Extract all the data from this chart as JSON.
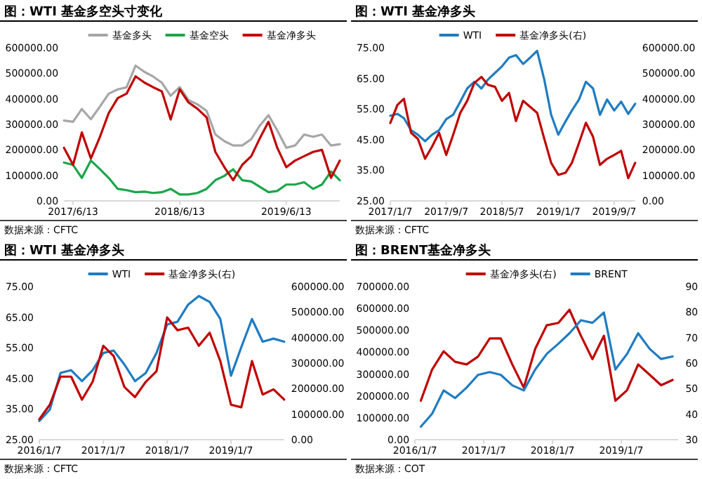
{
  "chart_data": [
    {
      "type": "line",
      "title": "图：WTI 基金多空头寸变化",
      "annotations": [
        "数据来源：CFTC"
      ],
      "legend": "top",
      "x": [
        "2017-05-13",
        "2017-06-13",
        "2017-07-13",
        "2017-08-13",
        "2017-09-13",
        "2017-10-13",
        "2017-11-13",
        "2017-12-13",
        "2018-01-13",
        "2018-02-13",
        "2018-03-13",
        "2018-04-13",
        "2018-05-13",
        "2018-06-13",
        "2018-07-13",
        "2018-08-13",
        "2018-09-13",
        "2018-10-13",
        "2018-11-13",
        "2018-12-13",
        "2019-01-13",
        "2019-02-13",
        "2019-03-13",
        "2019-04-13",
        "2019-05-13",
        "2019-06-13",
        "2019-07-13",
        "2019-08-13",
        "2019-09-13",
        "2019-10-13",
        "2019-11-13",
        "2019-12-13"
      ],
      "xlim": [
        "2017-05-13",
        "2019-12-13"
      ],
      "xticks": [
        {
          "value": "2017-06-13",
          "label": "2017/6/13"
        },
        {
          "value": "2018-06-13",
          "label": "2018/6/13"
        },
        {
          "value": "2019-06-13",
          "label": "2019/6/13"
        }
      ],
      "ylim": [
        0,
        600000
      ],
      "yticks": [
        {
          "value": 0,
          "label": "0.00"
        },
        {
          "value": 100000,
          "label": "100000.00"
        },
        {
          "value": 200000,
          "label": "200000.00"
        },
        {
          "value": 300000,
          "label": "300000.00"
        },
        {
          "value": 400000,
          "label": "400000.00"
        },
        {
          "value": 500000,
          "label": "500000.00"
        },
        {
          "value": 600000,
          "label": "600000.00"
        }
      ],
      "series": [
        {
          "name": "基金多头",
          "color": "#a6a6a6",
          "values": [
            315000,
            310000,
            360000,
            320000,
            370000,
            420000,
            437000,
            445000,
            530000,
            505000,
            488000,
            463000,
            412000,
            446000,
            395000,
            378000,
            353000,
            260000,
            234000,
            217000,
            217000,
            242000,
            293000,
            336000,
            276000,
            208000,
            217000,
            260000,
            251000,
            260000,
            217000,
            222000
          ]
        },
        {
          "name": "基金空头",
          "color": "#1aa64a",
          "values": [
            150000,
            141000,
            90000,
            158000,
            124000,
            90000,
            47000,
            42000,
            34000,
            36000,
            31000,
            34000,
            47000,
            25000,
            25000,
            31000,
            47000,
            81000,
            98000,
            124000,
            81000,
            76000,
            56000,
            34000,
            39000,
            64000,
            64000,
            73000,
            47000,
            64000,
            115000,
            81000
          ]
        },
        {
          "name": "基金净多头",
          "color": "#c00000",
          "values": [
            208000,
            141000,
            268000,
            166000,
            251000,
            344000,
            403000,
            420000,
            488000,
            463000,
            446000,
            429000,
            319000,
            437000,
            386000,
            361000,
            327000,
            192000,
            132000,
            81000,
            141000,
            175000,
            242000,
            310000,
            208000,
            132000,
            158000,
            175000,
            192000,
            200000,
            90000,
            158000
          ]
        }
      ]
    },
    {
      "type": "line",
      "title": "图：WTI 基金净多头",
      "annotations": [
        "数据来源：CFTC"
      ],
      "legend": "top",
      "x": [
        "2017-01-07",
        "2017-02-07",
        "2017-03-07",
        "2017-04-07",
        "2017-05-07",
        "2017-06-07",
        "2017-07-07",
        "2017-08-07",
        "2017-09-07",
        "2017-10-07",
        "2017-11-07",
        "2017-12-07",
        "2018-01-07",
        "2018-02-07",
        "2018-03-07",
        "2018-04-07",
        "2018-05-07",
        "2018-06-07",
        "2018-07-07",
        "2018-08-07",
        "2018-09-07",
        "2018-10-07",
        "2018-11-07",
        "2018-12-07",
        "2019-01-07",
        "2019-02-07",
        "2019-03-07",
        "2019-04-07",
        "2019-05-07",
        "2019-06-07",
        "2019-07-07",
        "2019-08-07",
        "2019-09-07",
        "2019-10-07",
        "2019-11-07",
        "2019-12-07"
      ],
      "xlim": [
        "2017-01-07",
        "2019-12-07"
      ],
      "xticks": [
        {
          "value": "2017-01-07",
          "label": "2017/1/7"
        },
        {
          "value": "2017-09-07",
          "label": "2017/9/7"
        },
        {
          "value": "2018-05-07",
          "label": "2018/5/7"
        },
        {
          "value": "2019-01-07",
          "label": "2019/1/7"
        },
        {
          "value": "2019-09-07",
          "label": "2019/9/7"
        }
      ],
      "ylim": [
        25,
        75
      ],
      "yticks": [
        {
          "value": 25,
          "label": "25.00"
        },
        {
          "value": 35,
          "label": "35.00"
        },
        {
          "value": 45,
          "label": "45.00"
        },
        {
          "value": 55,
          "label": "55.00"
        },
        {
          "value": 65,
          "label": "65.00"
        },
        {
          "value": 75,
          "label": "75.00"
        }
      ],
      "y2lim": [
        0,
        600000
      ],
      "y2ticks": [
        {
          "value": 0,
          "label": "0.00"
        },
        {
          "value": 100000,
          "label": "100000.00"
        },
        {
          "value": 200000,
          "label": "200000.00"
        },
        {
          "value": 300000,
          "label": "300000.00"
        },
        {
          "value": 400000,
          "label": "400000.00"
        },
        {
          "value": 500000,
          "label": "500000.00"
        },
        {
          "value": 600000,
          "label": "600000.00"
        }
      ],
      "series": [
        {
          "name": "WTI",
          "color": "#1f7cc1",
          "values": [
            52.8,
            53.4,
            52.0,
            48.1,
            46.6,
            44.5,
            46.6,
            48.1,
            51.7,
            53.1,
            57.4,
            61.7,
            63.9,
            61.7,
            64.6,
            66.8,
            68.9,
            71.8,
            72.6,
            69.7,
            71.8,
            74.0,
            64.6,
            53.1,
            46.6,
            50.9,
            54.5,
            58.1,
            63.9,
            61.7,
            53.1,
            58.1,
            54.5,
            57.4,
            53.4,
            56.7
          ]
        },
        {
          "name": "基金净多头(右)",
          "color": "#c00000",
          "axis": "y2",
          "values": [
            305000,
            376000,
            400000,
            267000,
            243000,
            165000,
            212000,
            267000,
            180000,
            259000,
            345000,
            392000,
            462000,
            486000,
            455000,
            447000,
            392000,
            423000,
            313000,
            392000,
            368000,
            345000,
            243000,
            149000,
            102000,
            110000,
            149000,
            227000,
            306000,
            251000,
            141000,
            165000,
            180000,
            196000,
            89000,
            149000
          ]
        }
      ]
    },
    {
      "type": "line",
      "title": "图：WTI 基金净多头",
      "annotations": [
        "数据来源：CFTC"
      ],
      "legend": "top",
      "x": [
        "2016-01-07",
        "2016-03-07",
        "2016-05-07",
        "2016-07-07",
        "2016-09-07",
        "2016-11-07",
        "2017-01-07",
        "2017-03-07",
        "2017-05-07",
        "2017-07-07",
        "2017-09-07",
        "2017-11-07",
        "2018-01-07",
        "2018-03-07",
        "2018-05-07",
        "2018-07-07",
        "2018-09-07",
        "2018-11-07",
        "2019-01-07",
        "2019-03-07",
        "2019-05-07",
        "2019-07-07",
        "2019-09-07",
        "2019-11-07"
      ],
      "xlim": [
        "2016-01-07",
        "2019-11-07"
      ],
      "xticks": [
        {
          "value": "2016-01-07",
          "label": "2016/1/7"
        },
        {
          "value": "2017-01-07",
          "label": "2017/1/7"
        },
        {
          "value": "2018-01-07",
          "label": "2018/1/7"
        },
        {
          "value": "2019-01-07",
          "label": "2019/1/7"
        }
      ],
      "ylim": [
        25,
        75
      ],
      "yticks": [
        {
          "value": 25,
          "label": "25.00"
        },
        {
          "value": 35,
          "label": "35.00"
        },
        {
          "value": 45,
          "label": "45.00"
        },
        {
          "value": 55,
          "label": "55.00"
        },
        {
          "value": 65,
          "label": "65.00"
        },
        {
          "value": 75,
          "label": "75.00"
        }
      ],
      "y2lim": [
        0,
        600000
      ],
      "y2ticks": [
        {
          "value": 0,
          "label": "0.00"
        },
        {
          "value": 100000,
          "label": "100000.00"
        },
        {
          "value": 200000,
          "label": "200000.00"
        },
        {
          "value": 300000,
          "label": "300000.00"
        },
        {
          "value": 400000,
          "label": "400000.00"
        },
        {
          "value": 500000,
          "label": "500000.00"
        },
        {
          "value": 600000,
          "label": "600000.00"
        }
      ],
      "series": [
        {
          "name": "WTI",
          "color": "#1f7cc1",
          "values": [
            31.1,
            34.8,
            46.8,
            47.7,
            44.1,
            47.7,
            53.3,
            54.1,
            49.6,
            44.1,
            46.8,
            53.3,
            62.6,
            63.5,
            69.1,
            71.9,
            70.0,
            64.4,
            45.9,
            55.2,
            64.4,
            57.0,
            58.0,
            57.0
          ]
        },
        {
          "name": "基金净多头(右)",
          "color": "#c00000",
          "axis": "y2",
          "values": [
            80000,
            137000,
            247000,
            247000,
            157000,
            227000,
            368000,
            328000,
            207000,
            167000,
            227000,
            268000,
            479000,
            429000,
            439000,
            368000,
            419000,
            308000,
            137000,
            127000,
            308000,
            177000,
            197000,
            157000
          ]
        }
      ]
    },
    {
      "type": "line",
      "title": "图：BRENT基金净多头",
      "annotations": [
        "数据来源：COT"
      ],
      "legend": "top",
      "x": [
        "2016-02-07",
        "2016-04-07",
        "2016-06-07",
        "2016-08-07",
        "2016-10-07",
        "2016-12-07",
        "2017-02-07",
        "2017-04-07",
        "2017-06-07",
        "2017-08-07",
        "2017-10-07",
        "2017-12-07",
        "2018-02-07",
        "2018-04-07",
        "2018-06-07",
        "2018-08-07",
        "2018-10-07",
        "2018-12-07",
        "2019-02-07",
        "2019-04-07",
        "2019-06-07",
        "2019-08-07",
        "2019-10-07"
      ],
      "xlim": [
        "2016-01-07",
        "2019-11-07"
      ],
      "xticks": [
        {
          "value": "2016-01-07",
          "label": "2016/1/7"
        },
        {
          "value": "2017-01-07",
          "label": "2017/1/7"
        },
        {
          "value": "2018-01-07",
          "label": "2018/1/7"
        },
        {
          "value": "2019-01-07",
          "label": "2019/1/7"
        }
      ],
      "ylim": [
        0,
        700000
      ],
      "yticks": [
        {
          "value": 0,
          "label": "0.00"
        },
        {
          "value": 100000,
          "label": "100000.00"
        },
        {
          "value": 200000,
          "label": "200000.00"
        },
        {
          "value": 300000,
          "label": "300000.00"
        },
        {
          "value": 400000,
          "label": "400000.00"
        },
        {
          "value": 500000,
          "label": "500000.00"
        },
        {
          "value": 600000,
          "label": "600000.00"
        },
        {
          "value": 700000,
          "label": "700000.00"
        }
      ],
      "y2lim": [
        30,
        90
      ],
      "y2ticks": [
        30,
        40,
        50,
        60,
        70,
        80,
        90
      ],
      "series": [
        {
          "name": "基金净多头(右)",
          "color": "#c00000",
          "values": [
            178000,
            321000,
            404000,
            356000,
            344000,
            380000,
            463000,
            463000,
            344000,
            238000,
            416000,
            523000,
            534000,
            594000,
            475000,
            368000,
            475000,
            178000,
            226000,
            344000,
            297000,
            249000,
            273000
          ]
        },
        {
          "name": "BRENT",
          "color": "#1f7cc1",
          "axis": "y2",
          "values": [
            35.1,
            40.2,
            49.3,
            46.3,
            50.4,
            55.4,
            56.5,
            55.4,
            51.3,
            49.3,
            57.5,
            63.6,
            67.6,
            71.7,
            76.8,
            75.8,
            79.8,
            57.5,
            63.6,
            71.7,
            65.6,
            61.6,
            62.6
          ]
        }
      ]
    }
  ]
}
